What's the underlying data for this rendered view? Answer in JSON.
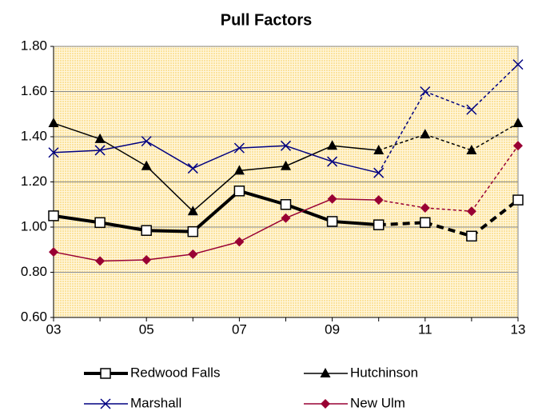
{
  "chart_data": {
    "type": "line",
    "title": "Pull Factors",
    "categories": [
      "03",
      null,
      "05",
      null,
      "07",
      null,
      "09",
      null,
      "11",
      null,
      "13"
    ],
    "dash_start": 7,
    "series": [
      {
        "name": "Redwood Falls",
        "color": "#000000",
        "marker": "square",
        "line_width": 4,
        "values": [
          1.05,
          1.02,
          0.985,
          0.98,
          1.16,
          1.1,
          1.025,
          1.01,
          1.02,
          0.96,
          1.12
        ]
      },
      {
        "name": "Hutchinson",
        "color": "#000000",
        "marker": "triangle",
        "line_width": 1.5,
        "values": [
          1.46,
          1.39,
          1.27,
          1.07,
          1.25,
          1.27,
          1.36,
          1.34,
          1.41,
          1.34,
          1.46
        ]
      },
      {
        "name": "Marshall",
        "color": "#000080",
        "marker": "x",
        "line_width": 1.5,
        "values": [
          1.33,
          1.34,
          1.38,
          1.26,
          1.35,
          1.36,
          1.29,
          1.24,
          1.6,
          1.52,
          1.72
        ]
      },
      {
        "name": "New Ulm",
        "color": "#990033",
        "marker": "diamond",
        "line_width": 1.5,
        "values": [
          0.89,
          0.85,
          0.855,
          0.88,
          0.935,
          1.04,
          1.125,
          1.12,
          1.085,
          1.07,
          1.36
        ]
      }
    ],
    "ylim": [
      0.6,
      1.8
    ],
    "yticks": [
      {
        "value": 0.6,
        "label": "0.60"
      },
      {
        "value": 0.8,
        "label": "0.80"
      },
      {
        "value": 1.0,
        "label": "1.00"
      },
      {
        "value": 1.2,
        "label": "1.20"
      },
      {
        "value": 1.4,
        "label": "1.40"
      },
      {
        "value": 1.6,
        "label": "1.60"
      },
      {
        "value": 1.8,
        "label": "1.80"
      }
    ],
    "grid": true,
    "legend": "bottom",
    "plot_background": "#fbe29b"
  }
}
